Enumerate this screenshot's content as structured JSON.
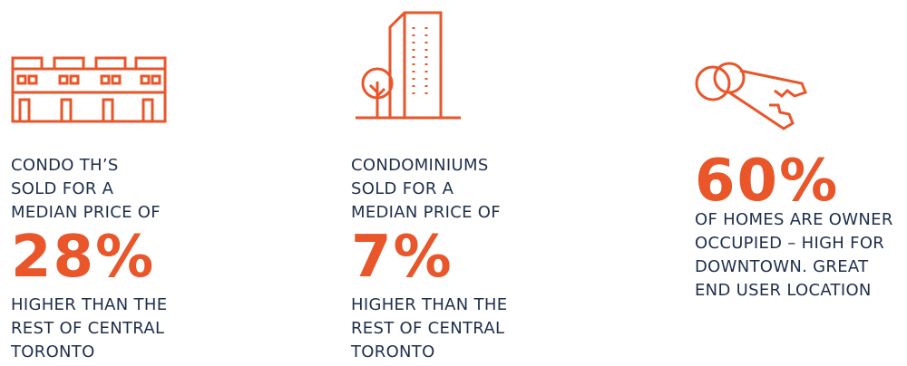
{
  "items": [
    {
      "intro": [
        "CONDO TH’S",
        "SOLD FOR A",
        "MEDIAN PRICE OF"
      ],
      "figure": "28%",
      "outro": [
        "HIGHER THAN THE",
        "REST OF CENTRAL",
        "TORONTO"
      ]
    },
    {
      "intro": [
        "CONDOMINIUMS",
        "SOLD FOR A",
        "MEDIAN PRICE OF"
      ],
      "figure": "7%",
      "outro": [
        "HIGHER THAN THE",
        "REST OF CENTRAL",
        "TORONTO"
      ]
    },
    {
      "intro": [],
      "figure": "60%",
      "outro": [
        "OF HOMES ARE OWNER",
        "OCCUPIED – HIGH FOR",
        "DOWNTOWN. GREAT",
        "END USER LOCATION"
      ]
    }
  ]
}
